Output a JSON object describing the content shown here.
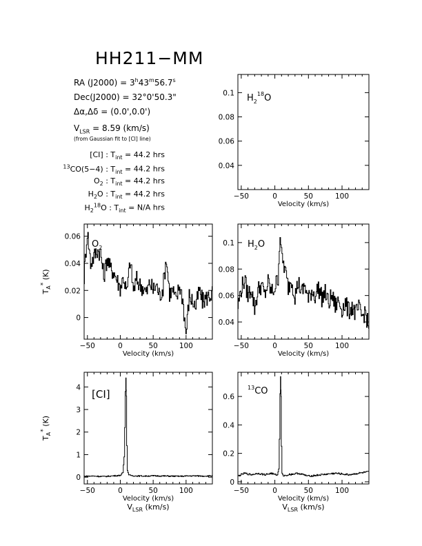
{
  "header": {
    "title": "HH211−MM",
    "ra_label": "RA (J2000) =",
    "ra_value": "3h43m56.7s",
    "dec_label": "Dec(J2000) =",
    "dec_value": "32°0'50.3\"",
    "offset_label": "Δα,Δδ =",
    "offset_value": "(0.0',0.0')",
    "vlsr_label": "VLSR",
    "vlsr_value": "= 8.59 (km/s)",
    "vlsr_note": "(from Gaussian fit to [CI] line)"
  },
  "integration_times": [
    {
      "species": "[CI]",
      "value": "44.2 hrs"
    },
    {
      "species": "13CO(5−4)",
      "value": "44.2 hrs"
    },
    {
      "species": "O2",
      "value": "44.2 hrs"
    },
    {
      "species": "H2O",
      "value": "44.2 hrs"
    },
    {
      "species": "H2 18O",
      "value": "N/A hrs"
    }
  ],
  "tint_label": "Tint",
  "chart_data": [
    {
      "id": "h218o",
      "type": "line",
      "label": "H2 18O",
      "xlabel": "Velocity (km/s)",
      "ylabel": "",
      "xlim": [
        -55,
        140
      ],
      "ylim": [
        0.02,
        0.115
      ],
      "xticks": [
        -50,
        0,
        50,
        100
      ],
      "yticks": [
        0.04,
        0.06,
        0.08,
        0.1
      ],
      "ytick_labels": [
        "0.04",
        "0.06",
        "0.08",
        "0.1"
      ],
      "series": []
    },
    {
      "id": "o2",
      "type": "line",
      "label": "O2",
      "xlabel": "Velocity (km/s)",
      "ylabel": "TA* (K)",
      "xlim": [
        -55,
        140
      ],
      "ylim": [
        -0.016,
        0.069
      ],
      "xticks": [
        -50,
        0,
        50,
        100
      ],
      "yticks": [
        0,
        0.02,
        0.04,
        0.06
      ],
      "ytick_labels": [
        "0",
        "0.02",
        "0.04",
        "0.06"
      ],
      "series": [
        {
          "x": [
            -55,
            -50,
            -45,
            -40,
            -35,
            -30,
            -25,
            -20,
            -15,
            -10,
            -5,
            0,
            5,
            10,
            15,
            20,
            25,
            30,
            35,
            40,
            45,
            50,
            55,
            60,
            65,
            70,
            75,
            80,
            85,
            90,
            95,
            100,
            105,
            110,
            115,
            120,
            125,
            130,
            135,
            140
          ],
          "y": [
            0.03,
            0.064,
            0.04,
            0.045,
            0.05,
            0.048,
            0.03,
            0.044,
            0.036,
            0.034,
            0.028,
            0.022,
            0.03,
            0.018,
            0.042,
            0.02,
            0.028,
            0.024,
            0.022,
            0.018,
            0.026,
            0.02,
            0.024,
            0.016,
            0.022,
            0.044,
            0.018,
            0.02,
            0.012,
            0.024,
            0.014,
            -0.012,
            0.016,
            0.012,
            0.008,
            0.02,
            0.012,
            0.014,
            0.016,
            0.018
          ]
        }
      ]
    },
    {
      "id": "h2o",
      "type": "line",
      "label": "H2O",
      "xlabel": "Velocity (km/s)",
      "ylabel": "",
      "xlim": [
        -55,
        140
      ],
      "ylim": [
        0.027,
        0.114
      ],
      "xticks": [
        -50,
        0,
        50,
        100
      ],
      "yticks": [
        0.04,
        0.06,
        0.08,
        0.1
      ],
      "ytick_labels": [
        "0.04",
        "0.06",
        "0.08",
        "0.1"
      ],
      "series": [
        {
          "x": [
            -55,
            -50,
            -45,
            -40,
            -35,
            -30,
            -25,
            -20,
            -15,
            -10,
            -5,
            0,
            5,
            8,
            10,
            15,
            20,
            25,
            30,
            35,
            40,
            45,
            50,
            55,
            60,
            65,
            70,
            75,
            80,
            85,
            90,
            95,
            100,
            105,
            110,
            115,
            120,
            125,
            130,
            135,
            140
          ],
          "y": [
            0.052,
            0.065,
            0.072,
            0.06,
            0.066,
            0.05,
            0.064,
            0.068,
            0.06,
            0.07,
            0.062,
            0.066,
            0.074,
            0.108,
            0.09,
            0.08,
            0.066,
            0.072,
            0.06,
            0.07,
            0.062,
            0.068,
            0.056,
            0.064,
            0.06,
            0.066,
            0.058,
            0.062,
            0.054,
            0.06,
            0.052,
            0.056,
            0.05,
            0.054,
            0.048,
            0.052,
            0.046,
            0.05,
            0.044,
            0.048,
            0.034
          ]
        }
      ]
    },
    {
      "id": "ci",
      "type": "line",
      "label": "[CI]",
      "xlabel": "Velocity (km/s)",
      "ylabel": "TA* (K)",
      "xlim": [
        -55,
        140
      ],
      "ylim": [
        -0.3,
        4.65
      ],
      "xticks": [
        -50,
        0,
        50,
        100
      ],
      "yticks": [
        0,
        1,
        2,
        3,
        4
      ],
      "ytick_labels": [
        "0",
        "1",
        "2",
        "3",
        "4"
      ],
      "series": [
        {
          "x": [
            -55,
            -40,
            -25,
            -10,
            0,
            4,
            6,
            7,
            8,
            8.6,
            9.2,
            10,
            11,
            13,
            20,
            35,
            50,
            70,
            90,
            110,
            125,
            140
          ],
          "y": [
            0.04,
            0.05,
            0.03,
            0.06,
            0.08,
            0.2,
            0.9,
            2.2,
            3.8,
            4.4,
            3.6,
            1.4,
            0.3,
            0.1,
            0.06,
            0.05,
            0.06,
            0.05,
            0.04,
            0.06,
            0.05,
            0.06
          ]
        }
      ]
    },
    {
      "id": "co13",
      "type": "line",
      "label": "13CO",
      "xlabel": "Velocity (km/s)",
      "ylabel": "",
      "xlim": [
        -55,
        140
      ],
      "ylim": [
        -0.015,
        0.77
      ],
      "xticks": [
        -50,
        0,
        50,
        100
      ],
      "yticks": [
        0,
        0.2,
        0.4,
        0.6
      ],
      "ytick_labels": [
        "0",
        "0.2",
        "0.4",
        "0.6"
      ],
      "series": [
        {
          "x": [
            -55,
            -45,
            -35,
            -25,
            -15,
            -5,
            0,
            4,
            6,
            7,
            8,
            8.6,
            9.2,
            10,
            11,
            13,
            20,
            35,
            50,
            70,
            90,
            110,
            125,
            140
          ],
          "y": [
            0.04,
            0.06,
            0.05,
            0.06,
            0.05,
            0.06,
            0.05,
            0.05,
            0.09,
            0.3,
            0.62,
            0.74,
            0.6,
            0.25,
            0.06,
            0.04,
            0.05,
            0.06,
            0.04,
            0.05,
            0.06,
            0.05,
            0.06,
            0.07
          ]
        }
      ]
    }
  ]
}
